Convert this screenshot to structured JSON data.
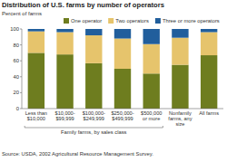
{
  "chart_data": {
    "type": "bar",
    "stacked": true,
    "title": "Distribution of U.S. farms by number of operators",
    "y_label": "Percent of farms",
    "categories": [
      "Less than\n$10,000",
      "$10,000-\n$99,999",
      "$100,000-\n$249,999",
      "$250,000-\n$499,999",
      "$500,000\nor more",
      "Nonfamily\nfarms, any\nsize",
      "All farms"
    ],
    "series": [
      {
        "name": "One operator",
        "color": "#6e7d1f",
        "values": [
          70,
          68,
          57,
          50,
          44,
          55,
          67
        ]
      },
      {
        "name": "Two operators",
        "color": "#e6c46c",
        "values": [
          27,
          28,
          35,
          38,
          37,
          34,
          29
        ]
      },
      {
        "name": "Three or more operators",
        "color": "#215e9c",
        "values": [
          3,
          4,
          8,
          12,
          19,
          11,
          4
        ]
      }
    ],
    "ylim": [
      0,
      100
    ],
    "yticks": [
      0,
      20,
      40,
      60,
      80,
      100
    ],
    "grid": false,
    "legend": "top",
    "annotations": [
      {
        "text": "Family farms, by sales class"
      }
    ],
    "source": "Source: USDA, 2002 Agricultural Resource Management Survey."
  }
}
